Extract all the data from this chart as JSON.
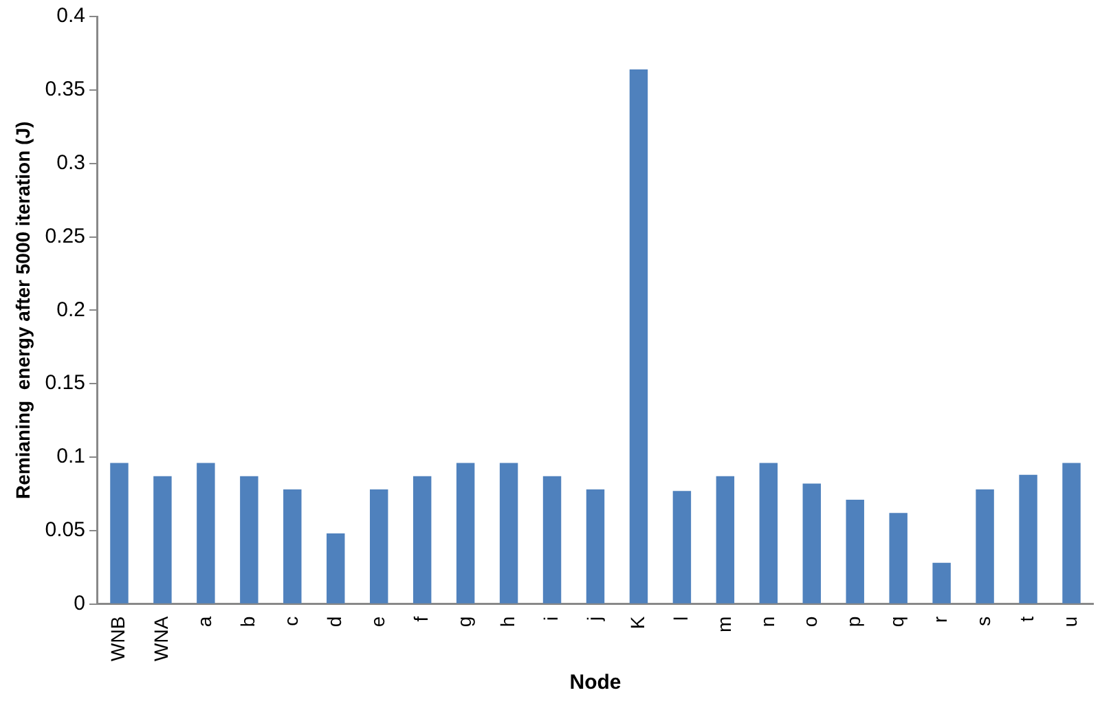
{
  "chart_data": {
    "type": "bar",
    "xlabel": "Node",
    "ylabel": "Remianing  energy after 5000 iteration (J)",
    "categories": [
      "WNB",
      "WNA",
      "a",
      "b",
      "c",
      "d",
      "e",
      "f",
      "g",
      "h",
      "i",
      "j",
      "K",
      "l",
      "m",
      "n",
      "o",
      "p",
      "q",
      "r",
      "s",
      "t",
      "u"
    ],
    "values": [
      0.096,
      0.087,
      0.096,
      0.087,
      0.078,
      0.048,
      0.078,
      0.087,
      0.096,
      0.096,
      0.087,
      0.078,
      0.364,
      0.077,
      0.087,
      0.096,
      0.082,
      0.071,
      0.062,
      0.028,
      0.078,
      0.088,
      0.096
    ],
    "color": "#4f81bd",
    "ylim": [
      0,
      0.4
    ],
    "yticks": [
      0,
      0.05,
      0.1,
      0.15,
      0.2,
      0.25,
      0.3,
      0.35,
      0.4
    ],
    "grid": false,
    "legend": false
  }
}
